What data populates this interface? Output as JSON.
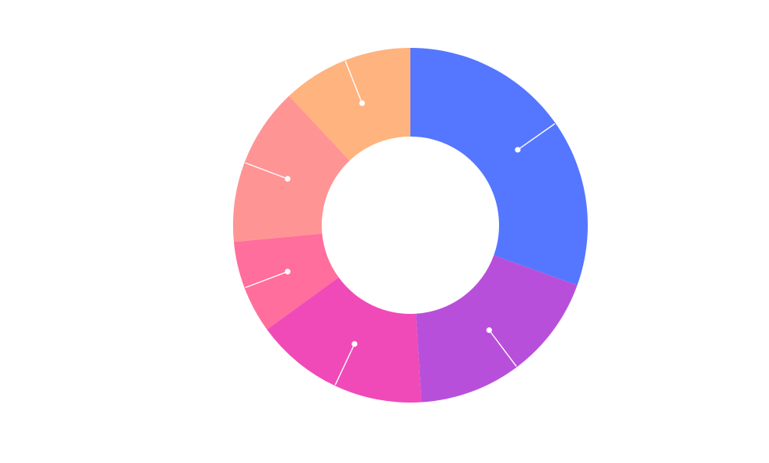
{
  "chart_data": {
    "type": "pie",
    "variant": "donut",
    "title": "",
    "legend": "none",
    "slices": [
      {
        "value": 30.5,
        "color": "#5577FF"
      },
      {
        "value": 18.5,
        "color": "#B84FDA"
      },
      {
        "value": 16.0,
        "color": "#F04AB8"
      },
      {
        "value": 8.5,
        "color": "#FF6E9C"
      },
      {
        "value": 14.5,
        "color": "#FF9494"
      },
      {
        "value": 12.0,
        "color": "#FFB37E"
      }
    ]
  }
}
